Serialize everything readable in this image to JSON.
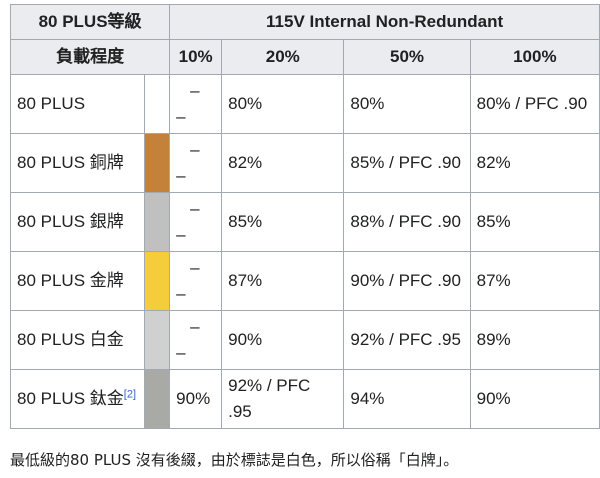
{
  "header": {
    "tier_col": "80 PLUS等級",
    "group": "115V Internal Non-Redundant",
    "load_col": "負載程度",
    "loads": [
      "10%",
      "20%",
      "50%",
      "100%"
    ]
  },
  "rows": [
    {
      "tier": "80 PLUS",
      "color": "#ffffff",
      "l10_top": "–",
      "l10_bot": "–",
      "l20": "80%",
      "l50": "80%",
      "l100": "80% / PFC .90"
    },
    {
      "tier": "80 PLUS 銅牌",
      "color": "#c4813a",
      "l10_top": "–",
      "l10_bot": "–",
      "l20": "82%",
      "l50": "85% / PFC .90",
      "l100": "82%"
    },
    {
      "tier": "80 PLUS 銀牌",
      "color": "#c0c0c0",
      "l10_top": "–",
      "l10_bot": "–",
      "l20": "85%",
      "l50": "88% / PFC .90",
      "l100": "85%"
    },
    {
      "tier": "80 PLUS 金牌",
      "color": "#f5cd3b",
      "l10_top": "–",
      "l10_bot": "–",
      "l20": "87%",
      "l50": "90% / PFC .90",
      "l100": "87%"
    },
    {
      "tier": "80 PLUS 白金",
      "color": "#d0d0d0",
      "l10_top": "–",
      "l10_bot": "–",
      "l20": "90%",
      "l50": "92% / PFC .95",
      "l100": "89%"
    },
    {
      "tier": "80 PLUS 鈦金",
      "tier_ref": "[2]",
      "color": "#a9a9a6",
      "l10": "90%",
      "l20": "92% / PFC .95",
      "l50": "94%",
      "l100": "90%"
    }
  ],
  "caption": "最低級的80 PLUS 沒有後綴，由於標誌是白色，所以俗稱「白牌」。"
}
